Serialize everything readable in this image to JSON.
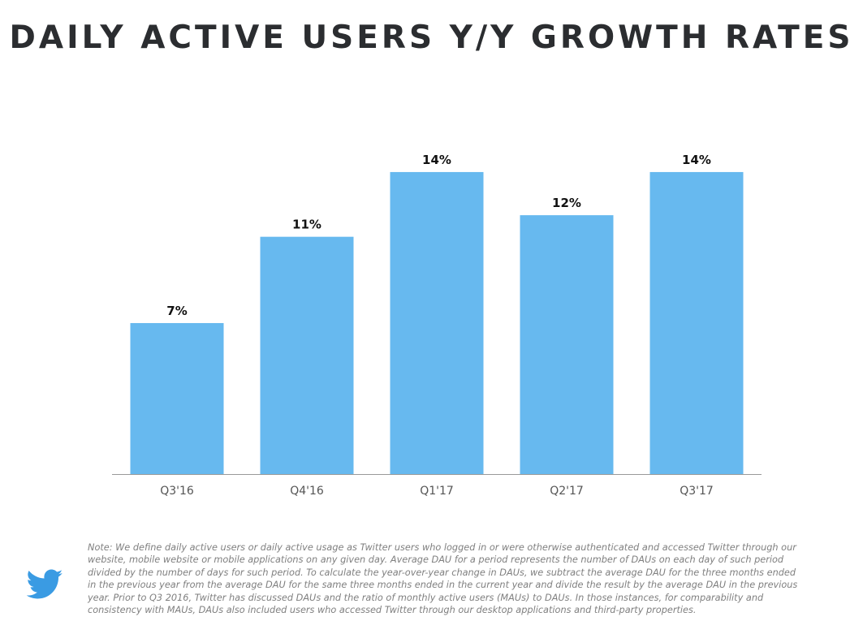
{
  "title": "DAILY ACTIVE USERS Y/Y GROWTH RATES",
  "chart_data": {
    "type": "bar",
    "title": "DAILY ACTIVE USERS Y/Y GROWTH RATES",
    "categories": [
      "Q3'16",
      "Q4'16",
      "Q1'17",
      "Q2'17",
      "Q3'17"
    ],
    "values": [
      7,
      11,
      14,
      12,
      14
    ],
    "data_labels": [
      "7%",
      "11%",
      "14%",
      "12%",
      "14%"
    ],
    "ylim": [
      0,
      14.6
    ],
    "xlabel": "",
    "ylabel": "",
    "grid": false,
    "unit": "%"
  },
  "colors": {
    "bar": "#67b9ef",
    "title": "#2b2d30",
    "axis": "#9a9a9a",
    "logo": "#3a9be3"
  },
  "logo": {
    "icon": "twitter-bird-icon"
  },
  "note": "Note: We define daily active users or daily active usage as Twitter users who logged in or were otherwise authenticated and accessed Twitter through our website, mobile website or mobile applications on any given day. Average DAU for a period represents the number of DAUs on each day of such period divided by the number of days for such period. To calculate the year-over-year change in DAUs, we subtract the average DAU for the three months ended in the previous year from the average DAU for the same three months ended in the current year and divide the result by the average DAU in the previous year. Prior to Q3 2016, Twitter has discussed DAUs and the ratio of monthly active users (MAUs) to DAUs. In those instances, for comparability and consistency with MAUs, DAUs also included users who accessed Twitter through our desktop applications and third-party properties."
}
